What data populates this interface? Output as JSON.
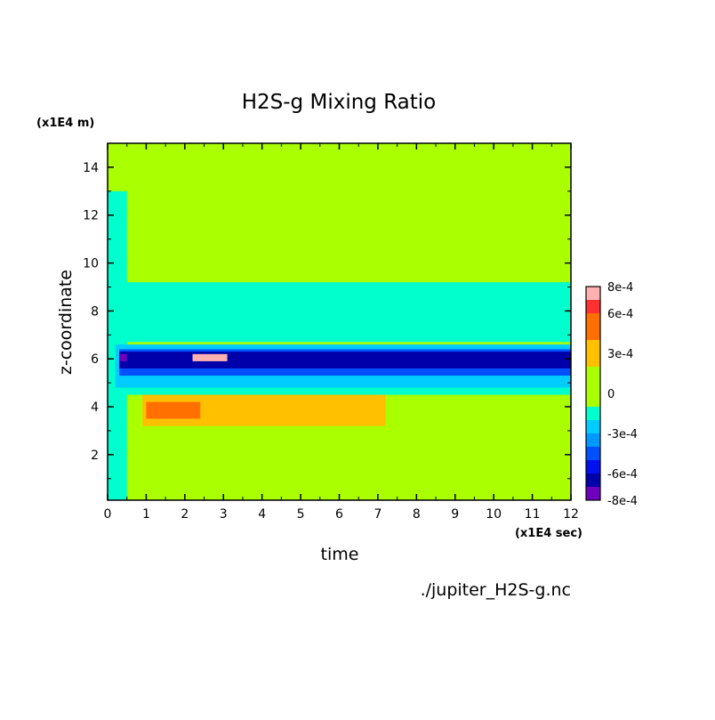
{
  "chart_data": {
    "type": "heatmap",
    "title": "H2S-g Mixing Ratio",
    "xlabel": "time",
    "ylabel": "z-coordinate",
    "x_unit": "(x1E4 sec)",
    "y_unit": "(x1E4 m)",
    "xlim": [
      0,
      12
    ],
    "ylim": [
      0.1,
      15
    ],
    "x_ticks": [
      "0",
      "1",
      "2",
      "3",
      "4",
      "5",
      "6",
      "7",
      "8",
      "9",
      "10",
      "11",
      "12"
    ],
    "y_ticks": [
      "2",
      "4",
      "6",
      "8",
      "10",
      "12",
      "14"
    ],
    "footnote": "./jupiter_H2S-g.nc",
    "colorbar": {
      "labels": [
        "8e-4",
        "6e-4",
        "3e-4",
        "0",
        "-3e-4",
        "-6e-4",
        "-8e-4"
      ],
      "label_values": [
        0.0008,
        0.0006,
        0.0003,
        0,
        -0.0003,
        -0.0006,
        -0.0008
      ],
      "levels": [
        {
          "min": 0.0007,
          "max": 0.0008,
          "color": "#ffb0b0"
        },
        {
          "min": 0.0006,
          "max": 0.0007,
          "color": "#ff3030"
        },
        {
          "min": 0.0004,
          "max": 0.0006,
          "color": "#ff7000"
        },
        {
          "min": 0.0002,
          "max": 0.0004,
          "color": "#ffc000"
        },
        {
          "min": -0.0001,
          "max": 0.0002,
          "color": "#aaff00"
        },
        {
          "min": -0.0002,
          "max": -0.0001,
          "color": "#00ffcc"
        },
        {
          "min": -0.0003,
          "max": -0.0002,
          "color": "#00ccff"
        },
        {
          "min": -0.0004,
          "max": -0.0003,
          "color": "#0099ff"
        },
        {
          "min": -0.0005,
          "max": -0.0004,
          "color": "#0050ff"
        },
        {
          "min": -0.0006,
          "max": -0.0005,
          "color": "#0010ee"
        },
        {
          "min": -0.0007,
          "max": -0.0006,
          "color": "#0000aa"
        },
        {
          "min": -0.0008,
          "max": -0.0007,
          "color": "#7000c0"
        }
      ]
    },
    "regions": [
      {
        "name": "background",
        "value": 0,
        "x": [
          0,
          12
        ],
        "y": [
          0.1,
          15
        ]
      },
      {
        "name": "upper-teal-band",
        "value": -0.00015,
        "x": [
          0.2,
          12
        ],
        "y": [
          6.7,
          9.2
        ]
      },
      {
        "name": "early-teal-column",
        "value": -0.00015,
        "x": [
          0,
          0.5
        ],
        "y": [
          0.1,
          13
        ]
      },
      {
        "name": "lower-teal-band",
        "value": -0.00015,
        "x": [
          0.3,
          12
        ],
        "y": [
          4.5,
          5.2
        ]
      },
      {
        "name": "light-blue-band",
        "value": -0.00025,
        "x": [
          0.2,
          12
        ],
        "y": [
          4.8,
          6.6
        ]
      },
      {
        "name": "blue-band",
        "value": -0.00045,
        "x": [
          0.3,
          12
        ],
        "y": [
          5.3,
          6.4
        ]
      },
      {
        "name": "dark-blue-core",
        "value": -0.00065,
        "x": [
          0.3,
          12
        ],
        "y": [
          5.6,
          6.3
        ]
      },
      {
        "name": "yellow-band",
        "value": 0.0003,
        "x": [
          0.9,
          7.2
        ],
        "y": [
          3.2,
          4.5
        ]
      },
      {
        "name": "orange-patch",
        "value": 0.0005,
        "x": [
          1.0,
          2.4
        ],
        "y": [
          3.5,
          4.2
        ]
      },
      {
        "name": "max-peak",
        "value": 0.0008,
        "x": [
          2.2,
          3.1
        ],
        "y": [
          5.9,
          6.2
        ]
      },
      {
        "name": "min-peak",
        "value": -0.0008,
        "x": [
          0.3,
          0.5
        ],
        "y": [
          5.9,
          6.2
        ]
      }
    ],
    "grid": false,
    "legend": "colorbar-right"
  }
}
